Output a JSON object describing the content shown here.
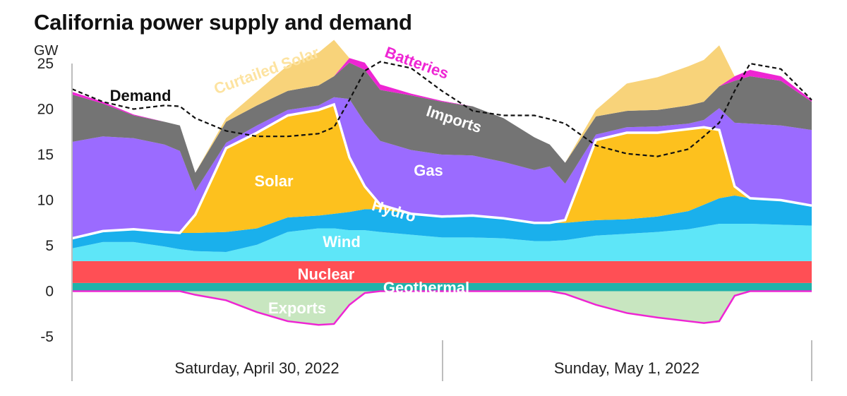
{
  "chart_data": {
    "type": "area",
    "title": "California power supply and demand",
    "ylabel": "GW",
    "ylim": [
      -6.5,
      26
    ],
    "yticks": [
      25,
      20,
      15,
      10,
      5,
      0,
      -5
    ],
    "x_unit": "hours since Saturday, April 30, 2022 00:00",
    "xlim": [
      0,
      48
    ],
    "days": [
      "Saturday, April 30, 2022",
      "Sunday, May 1, 2022"
    ],
    "x": [
      0,
      2,
      4,
      6,
      7,
      8,
      10,
      12,
      14,
      16,
      17,
      18,
      19,
      20,
      22,
      24,
      26,
      28,
      30,
      31,
      32,
      34,
      36,
      38,
      40,
      41,
      42,
      43,
      44,
      46,
      48
    ],
    "series": [
      {
        "name": "Geothermal",
        "color": "#20b2aa",
        "labelColor": "#ffffff",
        "values": [
          0.9,
          0.9,
          0.9,
          0.9,
          0.9,
          0.9,
          0.9,
          0.9,
          0.9,
          0.9,
          0.9,
          0.9,
          0.9,
          0.9,
          0.9,
          0.9,
          0.9,
          0.9,
          0.9,
          0.9,
          0.9,
          0.9,
          0.9,
          0.9,
          0.9,
          0.9,
          0.9,
          0.9,
          0.9,
          0.9,
          0.9
        ]
      },
      {
        "name": "Nuclear",
        "color": "#ff4f55",
        "labelColor": "#ffffff",
        "values": [
          2.4,
          2.4,
          2.4,
          2.4,
          2.4,
          2.4,
          2.4,
          2.4,
          2.4,
          2.4,
          2.4,
          2.4,
          2.4,
          2.4,
          2.4,
          2.4,
          2.4,
          2.4,
          2.4,
          2.4,
          2.4,
          2.4,
          2.4,
          2.4,
          2.4,
          2.4,
          2.4,
          2.4,
          2.4,
          2.4,
          2.4
        ]
      },
      {
        "name": "Wind",
        "color": "#5ee6f8",
        "labelColor": "#ffffff",
        "values": [
          1.4,
          2.1,
          2.1,
          1.6,
          1.3,
          1.1,
          1.0,
          1.8,
          3.2,
          3.6,
          3.6,
          3.4,
          3.4,
          3.2,
          2.9,
          2.6,
          2.6,
          2.5,
          2.2,
          2.2,
          2.3,
          2.8,
          3.0,
          3.2,
          3.5,
          3.8,
          4.1,
          4.1,
          4.1,
          4.0,
          3.9
        ]
      },
      {
        "name": "Hydro",
        "color": "#1ab0ec",
        "labelColor": "#ffffff",
        "values": [
          1.1,
          1.2,
          1.4,
          1.6,
          1.8,
          2.0,
          2.2,
          1.8,
          1.6,
          1.4,
          1.6,
          2.0,
          2.3,
          2.5,
          2.3,
          2.3,
          2.4,
          2.2,
          2.0,
          2.0,
          1.9,
          1.7,
          1.6,
          1.7,
          2.0,
          2.4,
          2.8,
          3.1,
          2.8,
          2.7,
          2.2
        ]
      },
      {
        "name": "Solar",
        "color": "#fdc11e",
        "labelColor": "#ffffff",
        "values": [
          0,
          0,
          0,
          0,
          0,
          2.0,
          9.2,
          10.5,
          11.2,
          11.6,
          12.0,
          6.0,
          2.5,
          0.5,
          0,
          0,
          0,
          0,
          0,
          0,
          0.3,
          8.8,
          9.5,
          9.2,
          9.0,
          8.5,
          7.5,
          1.0,
          0,
          0,
          0
        ]
      },
      {
        "name": "Gas",
        "color": "#9b6bff",
        "labelColor": "#ffffff",
        "values": [
          10.6,
          10.4,
          10.0,
          9.6,
          9.0,
          2.6,
          0.6,
          0.8,
          0.6,
          0.5,
          0.8,
          6.4,
          7.0,
          7.0,
          7.0,
          6.8,
          6.6,
          6.2,
          5.8,
          6.2,
          4.0,
          0.6,
          0.6,
          0.7,
          0.6,
          0.8,
          2.4,
          7.0,
          8.2,
          8.2,
          8.3
        ]
      },
      {
        "name": "Imports",
        "color": "#747474",
        "labelColor": "#ffffff",
        "values": [
          5.2,
          3.6,
          2.5,
          2.5,
          2.8,
          2.0,
          2.3,
          2.2,
          2.1,
          2.2,
          2.3,
          4.0,
          5.8,
          5.6,
          6.0,
          5.8,
          5.4,
          4.8,
          3.6,
          2.4,
          2.3,
          2.0,
          1.8,
          1.8,
          2.0,
          2.0,
          2.4,
          4.6,
          5.2,
          4.9,
          3.1
        ]
      },
      {
        "name": "Batteries",
        "color": "#ee25d3",
        "labelColor": "#ee25d3",
        "values": [
          0.3,
          0.2,
          0.1,
          0,
          0,
          0,
          0,
          0,
          0,
          0,
          0,
          0.5,
          0.8,
          0.6,
          0.2,
          0.1,
          0,
          0,
          0,
          0,
          0,
          0,
          0,
          0,
          0,
          0,
          0,
          0.5,
          0.7,
          0.5,
          0.2
        ]
      },
      {
        "name": "Curtailed Solar",
        "color": "#f8d37a",
        "labelColor": "#fde3a0",
        "values": [
          0,
          0,
          0,
          0,
          0,
          0,
          0.4,
          1.5,
          2.8,
          3.6,
          4.0,
          0,
          0,
          0,
          0,
          0,
          0,
          0,
          0,
          0,
          0,
          0.7,
          3.0,
          3.6,
          4.3,
          4.6,
          4.5,
          0,
          0,
          0,
          0
        ]
      },
      {
        "name": "Exports",
        "color": "#c8e6c0",
        "labelColor": "#ffffff",
        "values": [
          0,
          0,
          0,
          0,
          0,
          -0.4,
          -1.0,
          -2.3,
          -3.3,
          -3.7,
          -3.6,
          -1.5,
          -0.2,
          0,
          0,
          0,
          0,
          0,
          0,
          0,
          -0.3,
          -1.5,
          -2.4,
          -2.9,
          -3.3,
          -3.5,
          -3.3,
          -0.5,
          0,
          0,
          0
        ]
      }
    ],
    "demand": {
      "name": "Demand",
      "color": "#111111",
      "values": [
        22.2,
        20.8,
        20.0,
        20.4,
        20.3,
        19.0,
        17.6,
        17.0,
        17.0,
        17.3,
        18.0,
        21.0,
        24.2,
        25.2,
        24.5,
        22.0,
        19.8,
        19.3,
        19.3,
        18.9,
        18.4,
        16.0,
        15.1,
        14.8,
        15.6,
        17.0,
        18.5,
        22.0,
        25.0,
        24.4,
        21.0
      ]
    }
  }
}
